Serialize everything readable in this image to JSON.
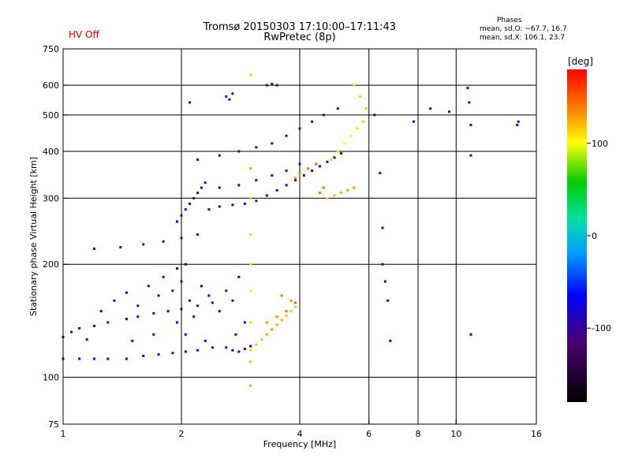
{
  "header": {
    "status": "HV Off",
    "title_line1": "Tromsø 20150303 17:10:00–17:11:43",
    "title_line2": "RwPretec (8p)",
    "stats_title": "Phases",
    "stats_o": "mean, sd,O: −67.7, 16.7",
    "stats_x": "mean, sd,X: 106.1, 23.7"
  },
  "colors": {
    "axes": "#000000",
    "background": "#ffffff",
    "status": "#cc0000"
  },
  "chart_data": {
    "type": "scatter",
    "xlabel": "Frequency [MHz]",
    "ylabel": "Stationary phase Virtual Height [km]",
    "xscale": "log",
    "yscale": "log",
    "xlim": [
      1,
      16
    ],
    "ylim": [
      75,
      750
    ],
    "xticks": [
      1,
      2,
      4,
      6,
      8,
      10,
      16
    ],
    "xtick_labels": [
      "1",
      "2",
      "4",
      "6",
      "8",
      "10",
      "16"
    ],
    "yticks": [
      75,
      100,
      200,
      300,
      400,
      500,
      600,
      750
    ],
    "ytick_labels": [
      "75",
      "100",
      "200",
      "300",
      "400",
      "500",
      "600",
      "750"
    ],
    "grid": true,
    "colorbar": {
      "label": "[deg]",
      "range": [
        -180,
        180
      ],
      "ticks": [
        100,
        0,
        -100
      ],
      "tick_labels": [
        "100",
        "0",
        "-100"
      ]
    },
    "series": [
      {
        "points": [
          [
            1.0,
            112,
            -80
          ],
          [
            1.1,
            112,
            -80
          ],
          [
            1.2,
            112,
            -78
          ],
          [
            1.3,
            112,
            -78
          ],
          [
            1.45,
            112,
            -75
          ],
          [
            1.6,
            114,
            -75
          ],
          [
            1.75,
            115,
            -72
          ],
          [
            1.9,
            116,
            -72
          ],
          [
            2.05,
            117,
            -70
          ],
          [
            2.2,
            118,
            -70
          ],
          [
            2.4,
            120,
            -70
          ],
          [
            1.1,
            135,
            -95
          ],
          [
            1.2,
            137,
            -92
          ],
          [
            1.3,
            140,
            -90
          ],
          [
            1.45,
            143,
            -88
          ],
          [
            1.55,
            145,
            -85
          ],
          [
            1.7,
            148,
            -88
          ],
          [
            1.85,
            150,
            -90
          ],
          [
            2.0,
            152,
            -92
          ],
          [
            2.2,
            155,
            -88
          ],
          [
            2.4,
            158,
            -90
          ],
          [
            1.0,
            128,
            -90
          ],
          [
            1.05,
            132,
            -92
          ],
          [
            1.15,
            126,
            -88
          ],
          [
            1.25,
            150,
            -90
          ],
          [
            1.35,
            160,
            -95
          ],
          [
            1.45,
            168,
            -92
          ],
          [
            1.55,
            155,
            -90
          ],
          [
            1.65,
            175,
            -100
          ],
          [
            1.75,
            165,
            -95
          ],
          [
            1.8,
            185,
            -105
          ],
          [
            1.9,
            170,
            -110
          ],
          [
            1.95,
            195,
            -115
          ],
          [
            2.0,
            180,
            -112
          ],
          [
            2.05,
            200,
            -120
          ],
          [
            2.1,
            160,
            -105
          ],
          [
            2.15,
            145,
            -95
          ],
          [
            2.25,
            175,
            -100
          ],
          [
            2.35,
            165,
            -95
          ],
          [
            2.5,
            150,
            -90
          ],
          [
            2.6,
            170,
            -95
          ],
          [
            2.7,
            160,
            -90
          ],
          [
            2.8,
            185,
            -100
          ],
          [
            2.9,
            140,
            -85
          ],
          [
            2.75,
            130,
            -80
          ],
          [
            2.3,
            125,
            -75
          ],
          [
            2.05,
            130,
            -80
          ],
          [
            1.95,
            140,
            -85
          ],
          [
            1.7,
            130,
            -80
          ],
          [
            1.5,
            125,
            -82
          ],
          [
            1.2,
            220,
            -80
          ],
          [
            1.4,
            222,
            -82
          ],
          [
            1.6,
            226,
            -84
          ],
          [
            1.8,
            230,
            -86
          ],
          [
            2.0,
            235,
            -88
          ],
          [
            2.2,
            240,
            -90
          ],
          [
            1.95,
            260,
            -100
          ],
          [
            2.0,
            270,
            -105
          ],
          [
            2.05,
            280,
            -110
          ],
          [
            2.1,
            290,
            -115
          ],
          [
            2.15,
            300,
            -118
          ],
          [
            2.2,
            310,
            -120
          ],
          [
            2.25,
            320,
            -118
          ],
          [
            2.3,
            330,
            -115
          ],
          [
            2.35,
            280,
            -100
          ],
          [
            2.5,
            285,
            -98
          ],
          [
            2.7,
            288,
            -95
          ],
          [
            2.9,
            290,
            -95
          ],
          [
            3.1,
            295,
            -100
          ],
          [
            3.3,
            305,
            -105
          ],
          [
            3.5,
            315,
            -108
          ],
          [
            3.7,
            325,
            -110
          ],
          [
            3.9,
            335,
            -110
          ],
          [
            4.1,
            345,
            -110
          ],
          [
            4.3,
            355,
            -105
          ],
          [
            4.5,
            365,
            -100
          ],
          [
            4.7,
            375,
            -90
          ],
          [
            4.9,
            385,
            -85
          ],
          [
            5.1,
            395,
            -80
          ],
          [
            2.5,
            320,
            -95
          ],
          [
            2.8,
            325,
            -100
          ],
          [
            3.1,
            335,
            -105
          ],
          [
            3.4,
            345,
            -110
          ],
          [
            3.7,
            355,
            -110
          ],
          [
            4.0,
            370,
            -110
          ],
          [
            2.2,
            380,
            -100
          ],
          [
            2.5,
            390,
            -105
          ],
          [
            2.8,
            400,
            -110
          ],
          [
            3.1,
            410,
            -110
          ],
          [
            3.4,
            420,
            -112
          ],
          [
            3.7,
            440,
            -115
          ],
          [
            4.0,
            460,
            -118
          ],
          [
            4.3,
            480,
            -118
          ],
          [
            4.6,
            500,
            -115
          ],
          [
            5.0,
            520,
            -110
          ],
          [
            2.6,
            560,
            -100
          ],
          [
            2.65,
            550,
            -100
          ],
          [
            2.7,
            570,
            -105
          ],
          [
            3.3,
            600,
            -110
          ],
          [
            3.4,
            605,
            -112
          ],
          [
            3.5,
            600,
            -110
          ],
          [
            2.1,
            540,
            -105
          ],
          [
            4.7,
            300,
            110
          ],
          [
            4.9,
            305,
            120
          ],
          [
            5.1,
            310,
            125
          ],
          [
            5.3,
            315,
            130
          ],
          [
            5.5,
            320,
            135
          ],
          [
            4.5,
            310,
            140
          ],
          [
            4.6,
            320,
            145
          ],
          [
            4.8,
            380,
            90
          ],
          [
            5.0,
            400,
            95
          ],
          [
            5.2,
            420,
            100
          ],
          [
            5.4,
            440,
            105
          ],
          [
            5.6,
            460,
            110
          ],
          [
            5.8,
            480,
            115
          ],
          [
            5.9,
            520,
            120
          ],
          [
            5.7,
            560,
            115
          ],
          [
            5.5,
            600,
            110
          ],
          [
            3.9,
            340,
            130
          ],
          [
            4.0,
            350,
            135
          ],
          [
            4.2,
            360,
            140
          ],
          [
            4.4,
            370,
            145
          ],
          [
            3.0,
            118,
            110
          ],
          [
            3.1,
            122,
            115
          ],
          [
            3.2,
            126,
            120
          ],
          [
            3.3,
            130,
            125
          ],
          [
            3.4,
            134,
            130
          ],
          [
            3.5,
            138,
            128
          ],
          [
            3.6,
            142,
            125
          ],
          [
            3.7,
            146,
            120
          ],
          [
            3.8,
            150,
            118
          ],
          [
            3.9,
            154,
            115
          ],
          [
            3.3,
            140,
            135
          ],
          [
            3.5,
            145,
            140
          ],
          [
            3.7,
            150,
            145
          ],
          [
            3.9,
            158,
            150
          ],
          [
            3.6,
            165,
            140
          ],
          [
            3.8,
            160,
            135
          ],
          [
            2.6,
            120,
            -100
          ],
          [
            2.7,
            118,
            -98
          ],
          [
            2.8,
            117,
            -95
          ],
          [
            2.9,
            119,
            -90
          ],
          [
            3.0,
            121,
            -88
          ],
          [
            3.0,
            95,
            80
          ],
          [
            3.0,
            110,
            85
          ],
          [
            3.0,
            140,
            90
          ],
          [
            3.0,
            170,
            95
          ],
          [
            3.0,
            200,
            95
          ],
          [
            3.0,
            240,
            90
          ],
          [
            3.0,
            300,
            85
          ],
          [
            3.0,
            360,
            80
          ],
          [
            3.0,
            640,
            90
          ],
          [
            6.2,
            500,
            -100
          ],
          [
            6.4,
            350,
            -110
          ],
          [
            6.5,
            250,
            -105
          ],
          [
            6.5,
            200,
            -100
          ],
          [
            6.6,
            180,
            -95
          ],
          [
            6.7,
            160,
            -90
          ],
          [
            6.8,
            125,
            -85
          ],
          [
            7.8,
            480,
            -80
          ],
          [
            8.6,
            520,
            -120
          ],
          [
            9.6,
            510,
            -115
          ],
          [
            10.7,
            590,
            -90
          ],
          [
            10.8,
            540,
            -100
          ],
          [
            10.9,
            470,
            -95
          ],
          [
            10.9,
            390,
            -85
          ],
          [
            10.9,
            130,
            -80
          ],
          [
            14.3,
            470,
            -100
          ],
          [
            14.4,
            480,
            -105
          ]
        ]
      }
    ]
  }
}
